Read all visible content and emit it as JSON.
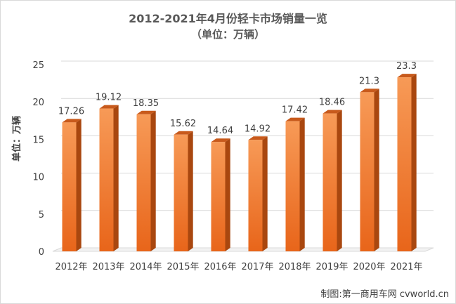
{
  "header": {
    "title": "2012-2021年4月份轻卡市场销量一览",
    "subtitle": "（单位：万辆）"
  },
  "footer": {
    "credit": "制图:第一商用车网 cvworld.cn"
  },
  "colors": {
    "bar_front_top": "#f79a57",
    "bar_front_bottom": "#e8651a",
    "bar_side": "#a9470f",
    "bar_top": "#c85a1c",
    "grid": "#d9d9d9",
    "text": "#404040"
  },
  "chart_data": {
    "type": "bar",
    "title": "2012-2021年4月份轻卡市场销量一览",
    "subtitle": "（单位：万辆）",
    "ylabel": "单位：万辆",
    "xlabel": "",
    "categories": [
      "2012年",
      "2013年",
      "2014年",
      "2015年",
      "2016年",
      "2017年",
      "2018年",
      "2019年",
      "2020年",
      "2021年"
    ],
    "values": [
      17.26,
      19.12,
      18.35,
      15.62,
      14.64,
      14.92,
      17.42,
      18.46,
      21.3,
      23.3
    ],
    "value_labels": [
      "17.26",
      "19.12",
      "18.35",
      "15.62",
      "14.64",
      "14.92",
      "17.42",
      "18.46",
      "21.3",
      "23.3"
    ],
    "yticks": [
      0,
      5,
      10,
      15,
      20,
      25
    ],
    "ylim": [
      0,
      25
    ],
    "grid": true,
    "legend": "none",
    "style": "3d-column"
  }
}
